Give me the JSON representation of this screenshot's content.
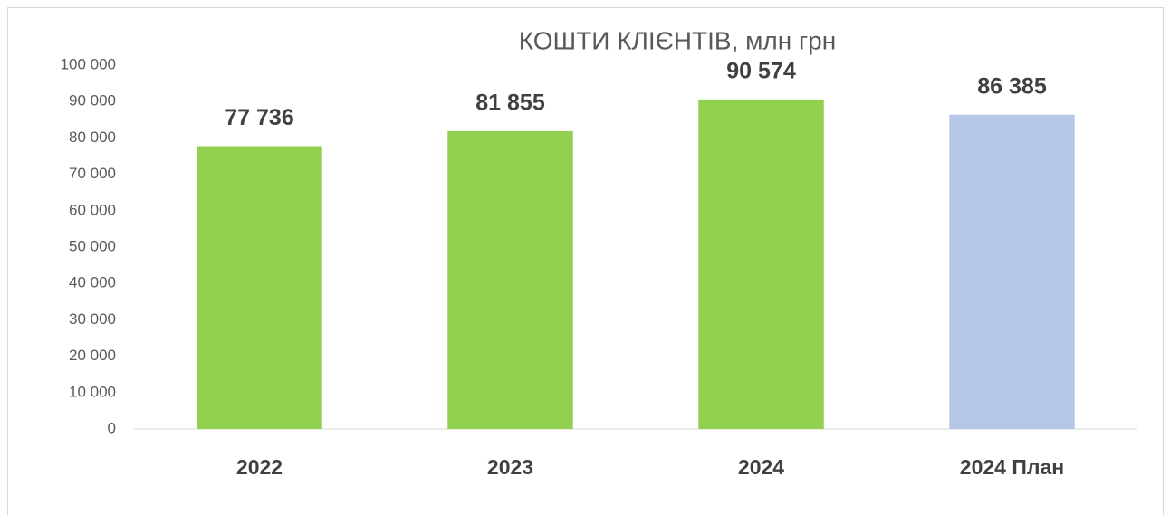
{
  "chart_data": {
    "type": "bar",
    "title": "КОШТИ КЛІЄНТІВ, млн грн",
    "categories": [
      "2022",
      "2023",
      "2024",
      "2024 План"
    ],
    "values": [
      77736,
      81855,
      90574,
      86385
    ],
    "value_labels": [
      "77 736",
      "81 855",
      "90 574",
      "86 385"
    ],
    "colors": [
      "#92d050",
      "#92d050",
      "#92d050",
      "#b4c7e7"
    ],
    "ylim": [
      0,
      100000
    ],
    "yticks": [
      0,
      {
        "value": 10000,
        "label": "10 000"
      },
      {
        "value": 20000,
        "label": "20 000"
      },
      {
        "value": 30000,
        "label": "30 000"
      },
      {
        "value": 40000,
        "label": "40 000"
      },
      {
        "value": 50000,
        "label": "50 000"
      },
      {
        "value": 60000,
        "label": "60 000"
      },
      {
        "value": 70000,
        "label": "70 000"
      },
      {
        "value": 80000,
        "label": "80 000"
      },
      {
        "value": 90000,
        "label": "90 000"
      },
      {
        "value": 100000,
        "label": "100 000"
      }
    ],
    "grid": false
  }
}
